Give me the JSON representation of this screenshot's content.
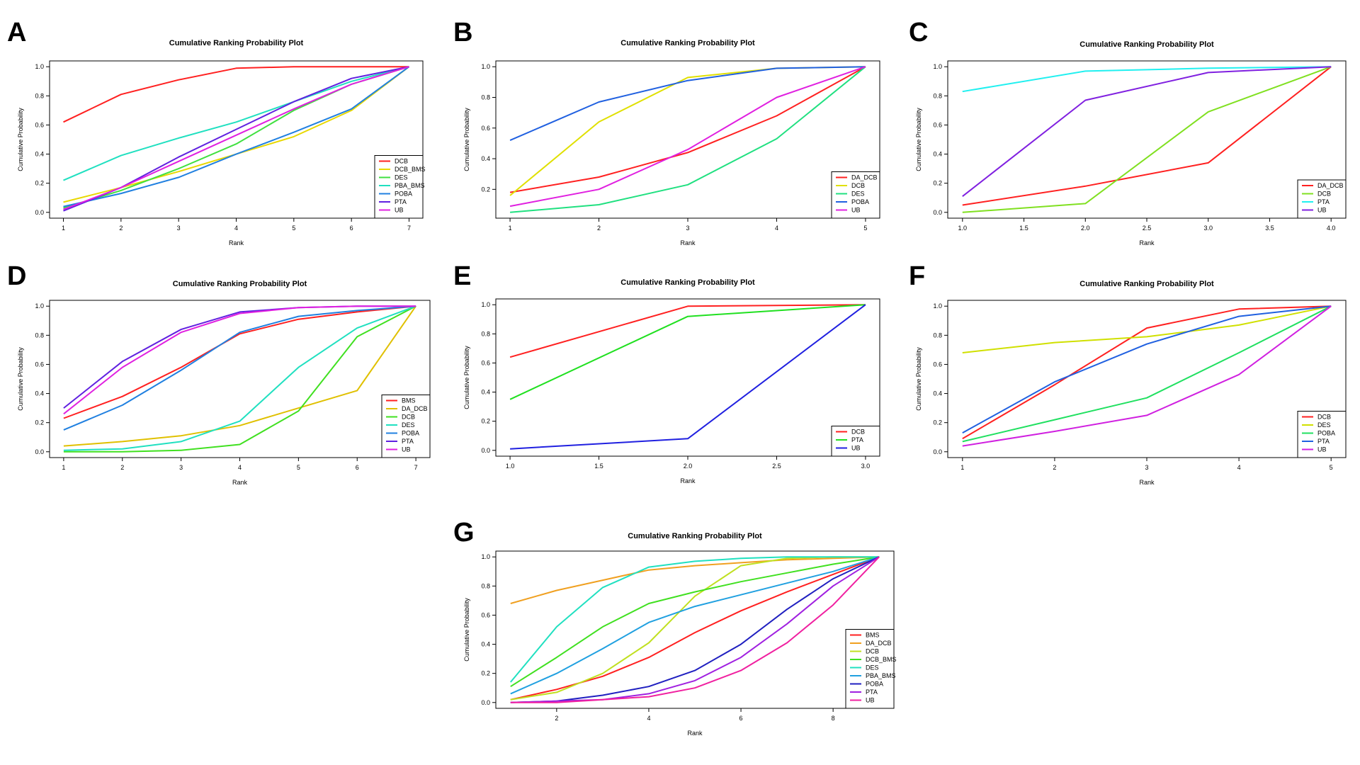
{
  "figure": {
    "panel_count": 7
  },
  "chart_data": [
    {
      "panel": "A",
      "type": "line",
      "title": "Cumulative Ranking Probability Plot",
      "xlabel": "Rank",
      "ylabel": "Cumulative Probability",
      "xlim": [
        1,
        7
      ],
      "ylim": [
        0,
        1
      ],
      "xticks": [
        "1",
        "2",
        "3",
        "4",
        "5",
        "6",
        "7"
      ],
      "xtick_values": [
        1,
        2,
        3,
        4,
        5,
        6,
        7
      ],
      "yticks": [
        "0.0",
        "0.2",
        "0.4",
        "0.6",
        "0.8",
        "1.0"
      ],
      "ytick_values": [
        0,
        0.2,
        0.4,
        0.6,
        0.8,
        1.0
      ],
      "legend_position": "bottom-right",
      "x": [
        1,
        2,
        3,
        4,
        5,
        6,
        7
      ],
      "series": [
        {
          "name": "DCB",
          "color": "#ff2020",
          "values": [
            0.62,
            0.81,
            0.91,
            0.99,
            1.0,
            1.0,
            1.0
          ]
        },
        {
          "name": "DCB_BMS",
          "color": "#e8d800",
          "values": [
            0.07,
            0.17,
            0.28,
            0.4,
            0.52,
            0.7,
            1.0
          ]
        },
        {
          "name": "DES",
          "color": "#40e040",
          "values": [
            0.03,
            0.15,
            0.3,
            0.47,
            0.7,
            0.88,
            1.0
          ]
        },
        {
          "name": "PBA_BMS",
          "color": "#20e0c0",
          "values": [
            0.22,
            0.39,
            0.51,
            0.62,
            0.76,
            0.9,
            1.0
          ]
        },
        {
          "name": "POBA",
          "color": "#2080e0",
          "values": [
            0.04,
            0.13,
            0.24,
            0.4,
            0.55,
            0.71,
            1.0
          ]
        },
        {
          "name": "PTA",
          "color": "#6020e0",
          "values": [
            0.01,
            0.17,
            0.38,
            0.57,
            0.76,
            0.92,
            1.0
          ]
        },
        {
          "name": "UB",
          "color": "#e020e0",
          "values": [
            0.02,
            0.17,
            0.35,
            0.53,
            0.71,
            0.88,
            1.0
          ]
        }
      ]
    },
    {
      "panel": "B",
      "type": "line",
      "title": "Cumulative Ranking Probability Plot",
      "xlabel": "Rank",
      "ylabel": "Cumulative Probability",
      "xlim": [
        1,
        5
      ],
      "ylim": [
        0.05,
        1
      ],
      "xticks": [
        "1",
        "2",
        "3",
        "4",
        "5"
      ],
      "xtick_values": [
        1,
        2,
        3,
        4,
        5
      ],
      "yticks": [
        "0.2",
        "0.4",
        "0.6",
        "0.8",
        "1.0"
      ],
      "ytick_values": [
        0.2,
        0.4,
        0.6,
        0.8,
        1.0
      ],
      "legend_position": "bottom-right",
      "x": [
        1,
        2,
        3,
        4,
        5
      ],
      "series": [
        {
          "name": "DA_DCB",
          "color": "#ff2020",
          "values": [
            0.18,
            0.28,
            0.44,
            0.68,
            1.0
          ]
        },
        {
          "name": "DCB",
          "color": "#e0e000",
          "values": [
            0.16,
            0.64,
            0.93,
            0.99,
            1.0
          ]
        },
        {
          "name": "DES",
          "color": "#20e080",
          "values": [
            0.05,
            0.1,
            0.23,
            0.53,
            1.0
          ]
        },
        {
          "name": "POBA",
          "color": "#2060e0",
          "values": [
            0.52,
            0.77,
            0.91,
            0.99,
            1.0
          ]
        },
        {
          "name": "UB",
          "color": "#e020e0",
          "values": [
            0.09,
            0.2,
            0.46,
            0.8,
            1.0
          ]
        }
      ]
    },
    {
      "panel": "C",
      "type": "line",
      "title": "Cumulative Ranking Probability Plot",
      "xlabel": "Rank",
      "ylabel": "Cumulative Probability",
      "xlim": [
        1,
        4
      ],
      "ylim": [
        0,
        1
      ],
      "xticks": [
        "1.0",
        "1.5",
        "2.0",
        "2.5",
        "3.0",
        "3.5",
        "4.0"
      ],
      "xtick_values": [
        1,
        1.5,
        2,
        2.5,
        3,
        3.5,
        4
      ],
      "yticks": [
        "0.0",
        "0.2",
        "0.4",
        "0.6",
        "0.8",
        "1.0"
      ],
      "ytick_values": [
        0,
        0.2,
        0.4,
        0.6,
        0.8,
        1.0
      ],
      "legend_position": "bottom-right",
      "x": [
        1,
        2,
        3,
        4
      ],
      "series": [
        {
          "name": "DA_DCB",
          "color": "#ff2020",
          "values": [
            0.05,
            0.18,
            0.34,
            1.0
          ]
        },
        {
          "name": "DCB",
          "color": "#80e020",
          "values": [
            0.0,
            0.06,
            0.69,
            1.0
          ]
        },
        {
          "name": "PTA",
          "color": "#20f0f0",
          "values": [
            0.83,
            0.97,
            0.99,
            1.0
          ]
        },
        {
          "name": "UB",
          "color": "#8020e0",
          "values": [
            0.11,
            0.77,
            0.96,
            1.0
          ]
        }
      ]
    },
    {
      "panel": "D",
      "type": "line",
      "title": "Cumulative Ranking Probability Plot",
      "xlabel": "Rank",
      "ylabel": "Cumulative Probability",
      "xlim": [
        1,
        7
      ],
      "ylim": [
        0,
        1
      ],
      "xticks": [
        "1",
        "2",
        "3",
        "4",
        "5",
        "6",
        "7"
      ],
      "xtick_values": [
        1,
        2,
        3,
        4,
        5,
        6,
        7
      ],
      "yticks": [
        "0.0",
        "0.2",
        "0.4",
        "0.6",
        "0.8",
        "1.0"
      ],
      "ytick_values": [
        0,
        0.2,
        0.4,
        0.6,
        0.8,
        1.0
      ],
      "legend_position": "bottom-right",
      "x": [
        1,
        2,
        3,
        4,
        5,
        6,
        7
      ],
      "series": [
        {
          "name": "BMS",
          "color": "#ff2020",
          "values": [
            0.23,
            0.38,
            0.58,
            0.81,
            0.91,
            0.96,
            1.0
          ]
        },
        {
          "name": "DA_DCB",
          "color": "#e0c000",
          "values": [
            0.04,
            0.07,
            0.11,
            0.18,
            0.3,
            0.42,
            1.0
          ]
        },
        {
          "name": "DCB",
          "color": "#40e020",
          "values": [
            0.0,
            0.0,
            0.01,
            0.05,
            0.28,
            0.79,
            1.0
          ]
        },
        {
          "name": "DES",
          "color": "#20e0c0",
          "values": [
            0.01,
            0.02,
            0.07,
            0.21,
            0.58,
            0.85,
            1.0
          ]
        },
        {
          "name": "POBA",
          "color": "#2080e0",
          "values": [
            0.15,
            0.32,
            0.56,
            0.82,
            0.93,
            0.97,
            1.0
          ]
        },
        {
          "name": "PTA",
          "color": "#6020e0",
          "values": [
            0.3,
            0.62,
            0.84,
            0.96,
            0.99,
            1.0,
            1.0
          ]
        },
        {
          "name": "UB",
          "color": "#e020e0",
          "values": [
            0.26,
            0.58,
            0.82,
            0.95,
            0.99,
            1.0,
            1.0
          ]
        }
      ]
    },
    {
      "panel": "E",
      "type": "line",
      "title": "Cumulative Ranking Probability Plot",
      "xlabel": "Rank",
      "ylabel": "Cumulative Probability",
      "xlim": [
        1,
        3
      ],
      "ylim": [
        0,
        1
      ],
      "xticks": [
        "1.0",
        "1.5",
        "2.0",
        "2.5",
        "3.0"
      ],
      "xtick_values": [
        1,
        1.5,
        2,
        2.5,
        3
      ],
      "yticks": [
        "0.0",
        "0.2",
        "0.4",
        "0.6",
        "0.8",
        "1.0"
      ],
      "ytick_values": [
        0,
        0.2,
        0.4,
        0.6,
        0.8,
        1.0
      ],
      "legend_position": "bottom-right",
      "x": [
        1,
        2,
        3
      ],
      "series": [
        {
          "name": "DCB",
          "color": "#ff2020",
          "values": [
            0.64,
            0.99,
            1.0
          ]
        },
        {
          "name": "PTA",
          "color": "#20e020",
          "values": [
            0.35,
            0.92,
            1.0
          ]
        },
        {
          "name": "UB",
          "color": "#2020e0",
          "values": [
            0.01,
            0.08,
            1.0
          ]
        }
      ]
    },
    {
      "panel": "F",
      "type": "line",
      "title": "Cumulative Ranking Probability Plot",
      "xlabel": "Rank",
      "ylabel": "Cumulative Probability",
      "xlim": [
        1,
        5
      ],
      "ylim": [
        0,
        1
      ],
      "xticks": [
        "1",
        "2",
        "3",
        "4",
        "5"
      ],
      "xtick_values": [
        1,
        2,
        3,
        4,
        5
      ],
      "yticks": [
        "0.0",
        "0.2",
        "0.4",
        "0.6",
        "0.8",
        "1.0"
      ],
      "ytick_values": [
        0,
        0.2,
        0.4,
        0.6,
        0.8,
        1.0
      ],
      "legend_position": "bottom-right",
      "x": [
        1,
        2,
        3,
        4,
        5
      ],
      "series": [
        {
          "name": "DCB",
          "color": "#ff2020",
          "values": [
            0.09,
            0.46,
            0.85,
            0.98,
            1.0
          ]
        },
        {
          "name": "DES",
          "color": "#d0e000",
          "values": [
            0.68,
            0.75,
            0.79,
            0.87,
            1.0
          ]
        },
        {
          "name": "POBA",
          "color": "#20e060",
          "values": [
            0.07,
            0.22,
            0.37,
            0.68,
            1.0
          ]
        },
        {
          "name": "PTA",
          "color": "#2060e0",
          "values": [
            0.13,
            0.48,
            0.74,
            0.93,
            1.0
          ]
        },
        {
          "name": "UB",
          "color": "#d020e0",
          "values": [
            0.04,
            0.14,
            0.25,
            0.53,
            1.0
          ]
        }
      ]
    },
    {
      "panel": "G",
      "type": "line",
      "title": "Cumulative Ranking Probability Plot",
      "xlabel": "Rank",
      "ylabel": "Cumulative Probability",
      "xlim": [
        1,
        9
      ],
      "ylim": [
        0,
        1
      ],
      "xticks": [
        "2",
        "4",
        "6",
        "8"
      ],
      "xtick_values": [
        2,
        4,
        6,
        8
      ],
      "yticks": [
        "0.0",
        "0.2",
        "0.4",
        "0.6",
        "0.8",
        "1.0"
      ],
      "ytick_values": [
        0,
        0.2,
        0.4,
        0.6,
        0.8,
        1.0
      ],
      "legend_position": "bottom-right",
      "x": [
        1,
        2,
        3,
        4,
        5,
        6,
        7,
        8,
        9
      ],
      "series": [
        {
          "name": "BMS",
          "color": "#ff2020",
          "values": [
            0.02,
            0.09,
            0.18,
            0.31,
            0.48,
            0.63,
            0.76,
            0.88,
            1.0
          ]
        },
        {
          "name": "DA_DCB",
          "color": "#f0a020",
          "values": [
            0.68,
            0.77,
            0.84,
            0.91,
            0.94,
            0.96,
            0.98,
            0.99,
            1.0
          ]
        },
        {
          "name": "DCB",
          "color": "#c0e020",
          "values": [
            0.02,
            0.07,
            0.2,
            0.41,
            0.73,
            0.94,
            0.99,
            1.0,
            1.0
          ]
        },
        {
          "name": "DCB_BMS",
          "color": "#40e020",
          "values": [
            0.11,
            0.31,
            0.52,
            0.68,
            0.76,
            0.83,
            0.89,
            0.95,
            1.0
          ]
        },
        {
          "name": "DES",
          "color": "#20e0c0",
          "values": [
            0.14,
            0.52,
            0.79,
            0.93,
            0.97,
            0.99,
            1.0,
            1.0,
            1.0
          ]
        },
        {
          "name": "PBA_BMS",
          "color": "#20a0e0",
          "values": [
            0.06,
            0.2,
            0.37,
            0.55,
            0.66,
            0.74,
            0.82,
            0.9,
            1.0
          ]
        },
        {
          "name": "POBA",
          "color": "#2020c0",
          "values": [
            0.0,
            0.01,
            0.05,
            0.11,
            0.22,
            0.4,
            0.64,
            0.85,
            1.0
          ]
        },
        {
          "name": "PTA",
          "color": "#a020e0",
          "values": [
            0.0,
            0.01,
            0.02,
            0.06,
            0.15,
            0.31,
            0.54,
            0.8,
            1.0
          ]
        },
        {
          "name": "UB",
          "color": "#f020a0",
          "values": [
            0.0,
            0.0,
            0.02,
            0.04,
            0.1,
            0.22,
            0.41,
            0.67,
            1.0
          ]
        }
      ]
    }
  ]
}
